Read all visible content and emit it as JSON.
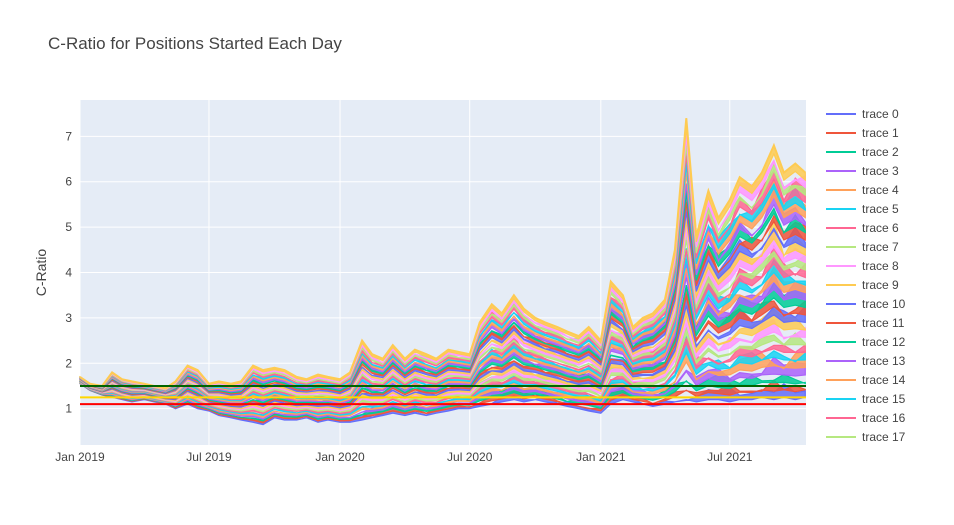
{
  "chart_data": {
    "type": "area",
    "title": "C-Ratio for Positions Started Each Day",
    "xlabel": "",
    "ylabel": "C-Ratio",
    "x_range": [
      "2019-01-01",
      "2021-10-16"
    ],
    "ylim": [
      0.2,
      7.8
    ],
    "x_ticks": [
      {
        "date": "2019-01-01",
        "label": "Jan 2019"
      },
      {
        "date": "2019-07-01",
        "label": "Jul 2019"
      },
      {
        "date": "2020-01-01",
        "label": "Jan 2020"
      },
      {
        "date": "2020-07-01",
        "label": "Jul 2020"
      },
      {
        "date": "2021-01-01",
        "label": "Jan 2021"
      },
      {
        "date": "2021-07-01",
        "label": "Jul 2021"
      }
    ],
    "y_ticks": [
      1,
      2,
      3,
      4,
      5,
      6,
      7
    ],
    "grid": true,
    "legend_position": "right",
    "plot_background": "#e5ecf6",
    "trace_colors": [
      "#636efa",
      "#ef553b",
      "#00cc96",
      "#ab63fa",
      "#ffa15a",
      "#19d3f3",
      "#ff6692",
      "#b6e880",
      "#ff97ff",
      "#fecb52"
    ],
    "legend": [
      "trace 0",
      "trace 1",
      "trace 2",
      "trace 3",
      "trace 4",
      "trace 5",
      "trace 6",
      "trace 7",
      "trace 8",
      "trace 9",
      "trace 10",
      "trace 11",
      "trace 12",
      "trace 13",
      "trace 14",
      "trace 15",
      "trace 16",
      "trace 17"
    ],
    "band_envelope": {
      "x": [
        "2019-01-01",
        "2019-01-15",
        "2019-02-01",
        "2019-02-15",
        "2019-03-01",
        "2019-03-15",
        "2019-04-01",
        "2019-04-15",
        "2019-05-01",
        "2019-05-15",
        "2019-06-01",
        "2019-06-15",
        "2019-07-01",
        "2019-07-15",
        "2019-08-01",
        "2019-08-15",
        "2019-09-01",
        "2019-09-15",
        "2019-10-01",
        "2019-10-15",
        "2019-11-01",
        "2019-11-15",
        "2019-12-01",
        "2019-12-15",
        "2020-01-01",
        "2020-01-15",
        "2020-02-01",
        "2020-02-15",
        "2020-03-01",
        "2020-03-15",
        "2020-04-01",
        "2020-04-15",
        "2020-05-01",
        "2020-05-15",
        "2020-06-01",
        "2020-06-15",
        "2020-07-01",
        "2020-07-15",
        "2020-08-01",
        "2020-08-15",
        "2020-09-01",
        "2020-09-15",
        "2020-10-01",
        "2020-10-15",
        "2020-11-01",
        "2020-11-15",
        "2020-12-01",
        "2020-12-15",
        "2021-01-01",
        "2021-01-15",
        "2021-02-01",
        "2021-02-15",
        "2021-03-01",
        "2021-03-15",
        "2021-04-01",
        "2021-04-15",
        "2021-05-01",
        "2021-05-15",
        "2021-06-01",
        "2021-06-15",
        "2021-07-01",
        "2021-07-15",
        "2021-08-01",
        "2021-08-15",
        "2021-09-01",
        "2021-09-15",
        "2021-10-01",
        "2021-10-15"
      ],
      "high": [
        1.7,
        1.55,
        1.5,
        1.8,
        1.65,
        1.6,
        1.55,
        1.5,
        1.45,
        1.6,
        1.95,
        1.85,
        1.55,
        1.6,
        1.55,
        1.6,
        1.95,
        1.85,
        1.9,
        1.85,
        1.7,
        1.65,
        1.75,
        1.7,
        1.65,
        1.8,
        2.5,
        2.2,
        2.1,
        2.4,
        2.1,
        2.3,
        2.2,
        2.1,
        2.3,
        2.25,
        2.2,
        2.9,
        3.3,
        3.1,
        3.5,
        3.2,
        3.0,
        2.9,
        2.8,
        2.7,
        2.6,
        2.8,
        2.5,
        3.8,
        3.5,
        2.8,
        3.0,
        3.1,
        3.4,
        4.5,
        7.4,
        4.8,
        5.8,
        5.2,
        5.6,
        6.1,
        5.9,
        6.2,
        6.8,
        6.2,
        6.4,
        6.2
      ],
      "low": [
        1.55,
        1.4,
        1.3,
        1.25,
        1.2,
        1.15,
        1.2,
        1.15,
        1.1,
        1.0,
        1.1,
        1.0,
        0.95,
        0.85,
        0.8,
        0.75,
        0.7,
        0.65,
        0.8,
        0.75,
        0.75,
        0.8,
        0.7,
        0.75,
        0.7,
        0.7,
        0.75,
        0.8,
        0.85,
        0.9,
        0.85,
        0.9,
        0.85,
        0.9,
        0.95,
        1.0,
        1.0,
        1.05,
        1.1,
        1.15,
        1.2,
        1.15,
        1.2,
        1.15,
        1.1,
        1.05,
        1.0,
        0.95,
        0.9,
        1.1,
        1.2,
        1.15,
        1.1,
        1.05,
        1.1,
        1.15,
        1.2,
        1.15,
        1.2,
        1.2,
        1.15,
        1.2,
        1.2,
        1.25,
        1.2,
        1.25,
        1.2,
        1.25
      ]
    },
    "reference_lines": [
      {
        "y": 1.1,
        "color": "#ff0000"
      },
      {
        "y": 1.25,
        "color": "#ffd700"
      },
      {
        "y": 1.5,
        "color": "#006400"
      }
    ]
  }
}
